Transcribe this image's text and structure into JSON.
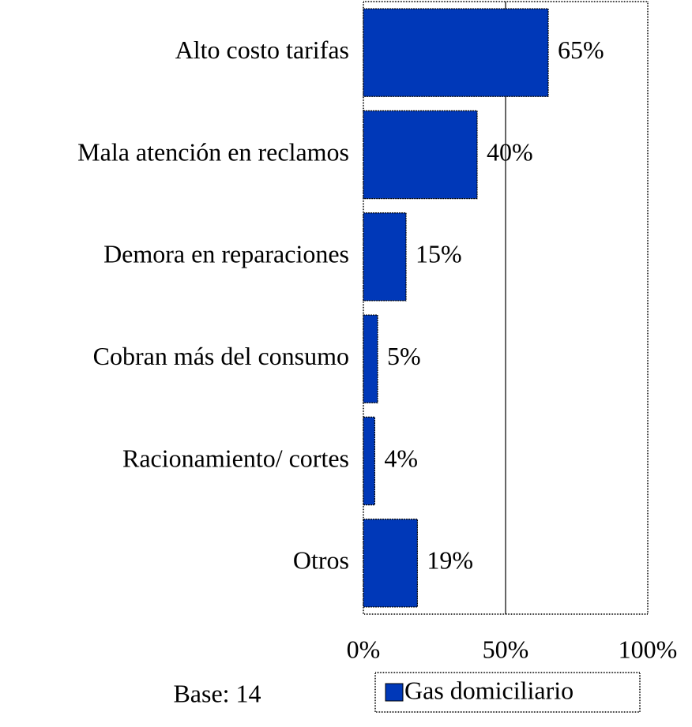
{
  "chart_data": {
    "type": "bar",
    "orientation": "horizontal",
    "categories": [
      "Alto costo tarifas",
      "Mala atención en reclamos",
      "Demora en reparaciones",
      "Cobran más del consumo",
      "Racionamiento/ cortes",
      "Otros"
    ],
    "series": [
      {
        "name": "Gas domiciliario",
        "color": "#0038b8",
        "values": [
          65,
          40,
          15,
          5,
          4,
          19
        ],
        "value_labels": [
          "65%",
          "40%",
          "15%",
          "5%",
          "4%",
          "19%"
        ]
      }
    ],
    "xlim": [
      0,
      100
    ],
    "xticks": [
      {
        "value": 0,
        "label": "0%"
      },
      {
        "value": 50,
        "label": "50%"
      },
      {
        "value": 100,
        "label": "100%"
      }
    ],
    "grid": true,
    "legend": "bottom",
    "annotations": [
      "Base: 14"
    ]
  }
}
